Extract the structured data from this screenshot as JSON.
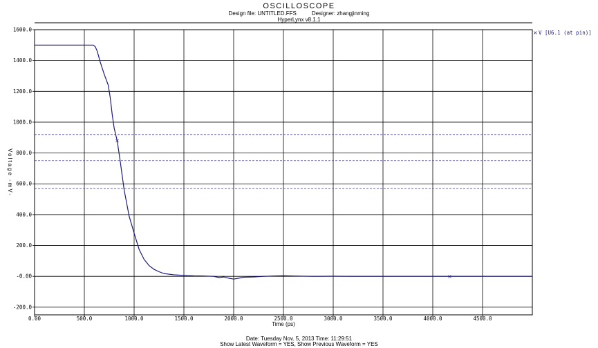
{
  "header": {
    "title": "OSCILLOSCOPE",
    "design_file": "Design file: UNTITLED.FFS",
    "designer": "Designer: zhangjinming",
    "version": "HyperLynx v8.1.1"
  },
  "footer": {
    "date_line": "Date: Tuesday Nov. 5, 2013   Time: 11:29:51",
    "options_line": "Show Latest Waveform = YES,   Show Previous Waveform = YES"
  },
  "chart_data": {
    "type": "line",
    "title": "OSCILLOSCOPE",
    "xlabel": "Time (ps)",
    "ylabel": "Voltage -mV-",
    "xlim": [
      0,
      5000
    ],
    "ylim": [
      -250,
      1600
    ],
    "x_ticks": [
      0,
      500,
      1000,
      1500,
      2000,
      2500,
      3000,
      3500,
      4000,
      4500
    ],
    "x_tick_labels": [
      "0.00",
      "500.0",
      "1000.0",
      "1500.0",
      "2000.0",
      "2500.0",
      "3000.0",
      "3500.0",
      "4000.0",
      "4500.0"
    ],
    "y_ticks": [
      -200,
      0,
      200,
      400,
      600,
      800,
      1000,
      1200,
      1400,
      1600
    ],
    "y_tick_labels": [
      "-200.0",
      "-0.00",
      "200.0",
      "400.0",
      "600.0",
      "800.0",
      "1000.0",
      "1200.0",
      "1400.0",
      "1600.0"
    ],
    "grid": true,
    "legend_position": "top-right",
    "reference_lines": [
      920,
      750,
      570
    ],
    "series": [
      {
        "name": "V [U6.1 (at pin)]",
        "color": "#1a1a80",
        "x": [
          0,
          550,
          590,
          610,
          630,
          660,
          700,
          740,
          760,
          780,
          800,
          830,
          860,
          900,
          950,
          1000,
          1050,
          1100,
          1150,
          1200,
          1250,
          1300,
          1400,
          1500,
          1600,
          1700,
          1800,
          1850,
          1900,
          1950,
          2000,
          2050,
          2100,
          2200,
          2300,
          2400,
          2500,
          2600,
          2800,
          3000,
          3200,
          3500,
          4000,
          4500,
          5000
        ],
        "y": [
          1500,
          1500,
          1500,
          1490,
          1460,
          1390,
          1310,
          1240,
          1160,
          1050,
          960,
          880,
          750,
          560,
          390,
          280,
          175,
          110,
          70,
          45,
          30,
          18,
          10,
          6,
          3,
          2,
          0,
          -8,
          -4,
          -12,
          -18,
          -12,
          -6,
          -4,
          0,
          2,
          4,
          2,
          0,
          1,
          0,
          0,
          0,
          0,
          0
        ]
      }
    ],
    "markers": [
      {
        "series": 0,
        "x": 830,
        "y": 880
      },
      {
        "series": 0,
        "x": 4170,
        "y": 0
      }
    ]
  }
}
